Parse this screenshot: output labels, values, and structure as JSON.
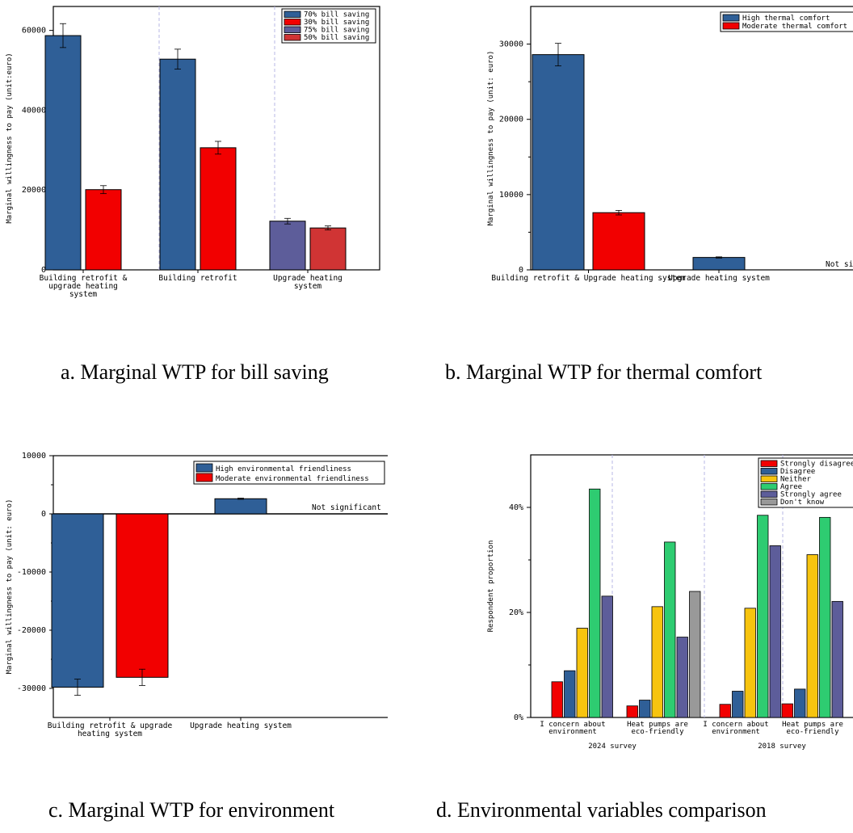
{
  "captions": {
    "a": "a. Marginal WTP for bill saving",
    "b": "b. Marginal WTP for thermal comfort",
    "c": "c. Marginal WTP for environment",
    "d": "d. Environmental variables comparison"
  },
  "chart_data": [
    {
      "id": "a",
      "type": "bar",
      "ylabel": "Marginal willingness to pay (unit:euro)",
      "ylim": [
        0,
        66000
      ],
      "yticks": [
        0,
        20000,
        40000,
        60000
      ],
      "ytick_labels": [
        "0",
        "20000",
        "40000",
        "60000"
      ],
      "grid": false,
      "legend_position": "top-right",
      "legend": [
        {
          "label": "70% bill saving",
          "color": "#2f5f97"
        },
        {
          "label": "30% bill saving",
          "color": "#f20000"
        },
        {
          "label": "75% bill saving",
          "color": "#5d5d9a"
        },
        {
          "label": "50% bill saving",
          "color": "#d03434"
        }
      ],
      "groups": [
        {
          "label": [
            "Building retrofit &",
            "upgrade heating",
            "system"
          ],
          "bars": [
            {
              "series": "70% bill saving",
              "value": 58700,
              "err": 3000
            },
            {
              "series": "30% bill saving",
              "value": 20100,
              "err": 1000
            }
          ]
        },
        {
          "label": [
            "Building retrofit"
          ],
          "bars": [
            {
              "series": "70% bill saving",
              "value": 52800,
              "err": 2500
            },
            {
              "series": "30% bill saving",
              "value": 30600,
              "err": 1600
            }
          ]
        },
        {
          "label": [
            "Upgrade heating",
            "system"
          ],
          "bars": [
            {
              "series": "75% bill saving",
              "value": 12200,
              "err": 700
            },
            {
              "series": "50% bill saving",
              "value": 10500,
              "err": 500
            }
          ]
        }
      ]
    },
    {
      "id": "b",
      "type": "bar",
      "ylabel": "Marginal willingness to pay (unit: euro)",
      "ylim": [
        0,
        35000
      ],
      "yticks": [
        0,
        10000,
        20000,
        30000
      ],
      "ytick_labels": [
        "0",
        "10000",
        "20000",
        "30000"
      ],
      "grid": false,
      "legend_position": "top-right",
      "legend": [
        {
          "label": "High thermal comfort",
          "color": "#2f5f97"
        },
        {
          "label": "Moderate thermal comfort",
          "color": "#f20000"
        }
      ],
      "annotation": "Not significant",
      "groups": [
        {
          "label": [
            "Building retrofit & Upgrade heating system"
          ],
          "bars": [
            {
              "series": "High thermal comfort",
              "value": 28600,
              "err": 1500
            },
            {
              "series": "Moderate thermal comfort",
              "value": 7600,
              "err": 300
            }
          ]
        },
        {
          "label": [
            "Upgrade heating system"
          ],
          "bars": [
            {
              "series": "High thermal comfort",
              "value": 1650,
              "err": 80
            }
          ]
        }
      ]
    },
    {
      "id": "c",
      "type": "bar",
      "ylabel": "Marginal willingness to pay (unit: euro)",
      "ylim": [
        -35000,
        10000
      ],
      "yticks": [
        -30000,
        -20000,
        -10000,
        0,
        10000
      ],
      "ytick_labels": [
        "-30000",
        "-20000",
        "-10000",
        "0",
        "10000"
      ],
      "grid": false,
      "legend_position": "top-right",
      "legend": [
        {
          "label": "High environmental friendliness",
          "color": "#2f5f97"
        },
        {
          "label": "Moderate environmental friendliness",
          "color": "#f20000"
        }
      ],
      "annotation": "Not significant",
      "groups": [
        {
          "label": [
            "Building retrofit & upgrade",
            "heating system"
          ],
          "bars": [
            {
              "series": "High environmental friendliness",
              "value": -29800,
              "err": 1400
            },
            {
              "series": "Moderate environmental friendliness",
              "value": -28100,
              "err": 1400
            }
          ]
        },
        {
          "label": [
            "Upgrade heating system"
          ],
          "bars": [
            {
              "series": "High environmental friendliness",
              "value": 2600,
              "err": 100
            }
          ]
        }
      ]
    },
    {
      "id": "d",
      "type": "bar",
      "ylabel": "Respondent proportion",
      "ylim": [
        0,
        0.5
      ],
      "yticks": [
        0,
        0.2,
        0.4
      ],
      "ytick_labels": [
        "0%",
        "20%",
        "40%"
      ],
      "grid": false,
      "legend_position": "top-right",
      "legend": [
        {
          "label": "Strongly disagree",
          "color": "#f20000"
        },
        {
          "label": "Disagree",
          "color": "#2f5f97"
        },
        {
          "label": "Neither",
          "color": "#f7c40f"
        },
        {
          "label": "Agree",
          "color": "#2ecc71"
        },
        {
          "label": "Strongly agree",
          "color": "#5d5d9a"
        },
        {
          "label": "Don't know",
          "color": "#999999"
        }
      ],
      "surveys": [
        "2024 survey",
        "2018 survey"
      ],
      "groups": [
        {
          "label": [
            "I concern about",
            "environment"
          ],
          "survey": "2024 survey",
          "values": [
            0.068,
            0.089,
            0.17,
            0.435,
            0.231,
            null
          ]
        },
        {
          "label": [
            "Heat pumps are",
            "eco-friendly"
          ],
          "survey": "2024 survey",
          "values": [
            0.022,
            0.033,
            0.211,
            0.334,
            0.153,
            0.24
          ]
        },
        {
          "label": [
            "I concern about",
            "environment"
          ],
          "survey": "2018 survey",
          "values": [
            0.025,
            0.05,
            0.208,
            0.385,
            0.327,
            null
          ]
        },
        {
          "label": [
            "Heat pumps are",
            "eco-friendly"
          ],
          "survey": "2018 survey",
          "values": [
            0.026,
            0.054,
            0.31,
            0.381,
            0.221,
            null
          ]
        }
      ]
    }
  ]
}
